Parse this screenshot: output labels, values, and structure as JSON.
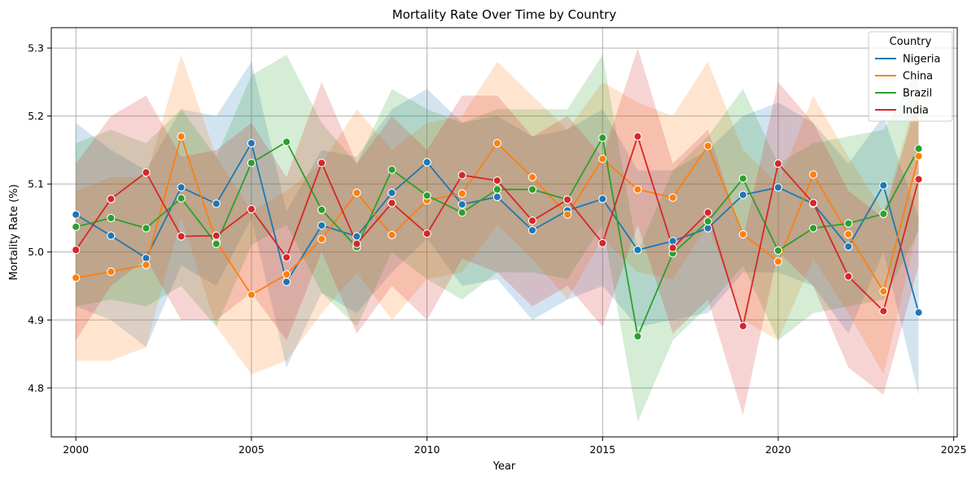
{
  "chart_data": {
    "type": "line",
    "title": "Mortality Rate Over Time by Country",
    "xlabel": "Year",
    "ylabel": "Mortality Rate (%)",
    "xlim": [
      1999.3,
      2025.1
    ],
    "ylim": [
      4.728,
      5.33
    ],
    "xticks": [
      2000,
      2005,
      2010,
      2015,
      2020,
      2025
    ],
    "yticks": [
      4.8,
      4.9,
      5.0,
      5.1,
      5.2,
      5.3
    ],
    "xtick_labels": [
      "2000",
      "2005",
      "2010",
      "2015",
      "2020",
      "2025"
    ],
    "ytick_labels": [
      "4.8",
      "4.9",
      "5.0",
      "5.1",
      "5.2",
      "5.3"
    ],
    "grid": true,
    "legend": {
      "title": "Country",
      "placement": "top-right"
    },
    "x": [
      2000,
      2001,
      2002,
      2003,
      2004,
      2005,
      2006,
      2007,
      2008,
      2009,
      2010,
      2011,
      2012,
      2013,
      2014,
      2015,
      2016,
      2017,
      2018,
      2019,
      2020,
      2021,
      2022,
      2023,
      2024
    ],
    "series": [
      {
        "name": "Nigeria",
        "color": "#1f77b4",
        "values": [
          5.055,
          5.024,
          4.991,
          5.095,
          5.071,
          5.16,
          4.956,
          5.039,
          5.023,
          5.087,
          5.132,
          5.07,
          5.081,
          5.032,
          5.061,
          5.078,
          5.003,
          5.016,
          5.035,
          5.084,
          5.095,
          5.071,
          5.008,
          5.098,
          4.911
        ],
        "upper": [
          5.19,
          5.15,
          5.12,
          5.21,
          5.2,
          5.28,
          5.06,
          5.15,
          5.14,
          5.21,
          5.24,
          5.19,
          5.2,
          5.17,
          5.18,
          5.21,
          5.12,
          5.12,
          5.15,
          5.2,
          5.22,
          5.19,
          5.13,
          5.2,
          5.05
        ],
        "lower": [
          4.92,
          4.9,
          4.86,
          4.98,
          4.95,
          5.05,
          4.83,
          4.94,
          4.91,
          4.97,
          5.02,
          4.95,
          4.96,
          4.9,
          4.93,
          4.95,
          4.89,
          4.9,
          4.91,
          4.97,
          4.97,
          4.95,
          4.88,
          5.0,
          4.79
        ]
      },
      {
        "name": "China",
        "color": "#ff7f0e",
        "values": [
          4.962,
          4.971,
          4.981,
          5.17,
          5.015,
          4.937,
          4.967,
          5.019,
          5.087,
          5.025,
          5.076,
          5.086,
          5.16,
          5.11,
          5.055,
          5.137,
          5.092,
          5.08,
          5.156,
          5.026,
          4.986,
          5.114,
          5.026,
          4.942,
          5.141
        ],
        "upper": [
          5.09,
          5.11,
          5.11,
          5.29,
          5.14,
          5.06,
          5.09,
          5.13,
          5.21,
          5.15,
          5.19,
          5.2,
          5.28,
          5.23,
          5.18,
          5.25,
          5.22,
          5.2,
          5.28,
          5.15,
          5.1,
          5.23,
          5.14,
          5.06,
          5.24
        ],
        "lower": [
          4.84,
          4.84,
          4.86,
          5.05,
          4.89,
          4.82,
          4.84,
          4.91,
          4.97,
          4.9,
          4.96,
          4.97,
          5.04,
          4.99,
          4.93,
          5.02,
          4.97,
          4.96,
          5.04,
          4.9,
          4.87,
          4.99,
          4.91,
          4.82,
          5.04
        ]
      },
      {
        "name": "Brazil",
        "color": "#2ca02c",
        "values": [
          5.037,
          5.05,
          5.035,
          5.079,
          5.012,
          5.131,
          5.162,
          5.062,
          5.007,
          5.121,
          5.083,
          5.058,
          5.092,
          5.092,
          5.077,
          5.168,
          4.876,
          4.998,
          5.045,
          5.108,
          5.002,
          5.035,
          5.042,
          5.056,
          5.152
        ],
        "upper": [
          5.16,
          5.18,
          5.16,
          5.21,
          5.14,
          5.26,
          5.29,
          5.19,
          5.13,
          5.24,
          5.21,
          5.19,
          5.21,
          5.21,
          5.21,
          5.29,
          5.0,
          5.12,
          5.17,
          5.24,
          5.13,
          5.16,
          5.17,
          5.18,
          5.27
        ],
        "lower": [
          4.92,
          4.93,
          4.92,
          4.95,
          4.89,
          5.01,
          5.04,
          4.94,
          4.89,
          5.0,
          4.96,
          4.93,
          4.97,
          4.97,
          4.96,
          5.04,
          4.75,
          4.87,
          4.92,
          4.98,
          4.87,
          4.91,
          4.92,
          4.93,
          5.03
        ]
      },
      {
        "name": "India",
        "color": "#d62728",
        "values": [
          5.003,
          5.078,
          5.117,
          5.023,
          5.024,
          5.063,
          4.992,
          5.131,
          5.012,
          5.072,
          5.027,
          5.113,
          5.105,
          5.046,
          5.077,
          5.013,
          5.17,
          5.006,
          5.058,
          4.891,
          5.13,
          5.072,
          4.964,
          4.913,
          5.107
        ],
        "upper": [
          5.13,
          5.2,
          5.23,
          5.14,
          5.15,
          5.19,
          5.11,
          5.25,
          5.13,
          5.2,
          5.15,
          5.23,
          5.23,
          5.17,
          5.2,
          5.14,
          5.3,
          5.13,
          5.18,
          5.02,
          5.25,
          5.19,
          5.09,
          5.05,
          5.23
        ],
        "lower": [
          4.87,
          4.95,
          4.99,
          4.9,
          4.9,
          4.94,
          4.87,
          5.0,
          4.88,
          4.95,
          4.9,
          4.99,
          4.97,
          4.92,
          4.95,
          4.89,
          5.04,
          4.88,
          4.93,
          4.76,
          5.0,
          4.95,
          4.83,
          4.79,
          4.98
        ]
      }
    ]
  }
}
